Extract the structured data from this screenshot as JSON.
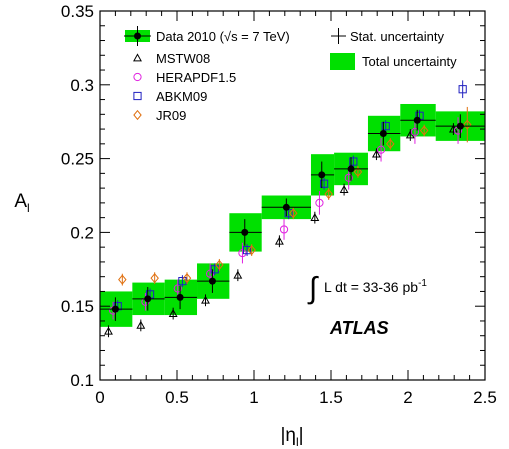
{
  "chart_data": {
    "type": "scatter",
    "xlabel": "|η",
    "xlabel_sub": "l",
    "xlabel_suffix": "|",
    "ylabel": "A",
    "ylabel_sub": "l",
    "xlim": [
      0,
      2.5
    ],
    "ylim": [
      0.1,
      0.35
    ],
    "xticks": [
      "0",
      "0.5",
      "1",
      "1.5",
      "2",
      "2.5"
    ],
    "yticks": [
      "0.1",
      "0.15",
      "0.2",
      "0.25",
      "0.3",
      "0.35"
    ],
    "bin_edges": [
      0,
      0.21,
      0.42,
      0.63,
      0.84,
      1.05,
      1.37,
      1.52,
      1.74,
      1.95,
      2.18,
      2.5
    ],
    "data": {
      "name": "Data 2010 (√s = 7 TeV)",
      "x": [
        0.1,
        0.31,
        0.52,
        0.73,
        0.94,
        1.21,
        1.44,
        1.63,
        1.84,
        2.06,
        2.34
      ],
      "y": [
        0.148,
        0.155,
        0.156,
        0.167,
        0.2,
        0.217,
        0.239,
        0.243,
        0.267,
        0.276,
        0.272
      ],
      "stat_err": [
        0.008,
        0.008,
        0.008,
        0.008,
        0.009,
        0.006,
        0.009,
        0.008,
        0.008,
        0.007,
        0.008
      ],
      "total_err": [
        0.012,
        0.011,
        0.012,
        0.012,
        0.013,
        0.008,
        0.014,
        0.011,
        0.012,
        0.011,
        0.01
      ],
      "color": "#00e000"
    },
    "theory": [
      {
        "name": "MSTW08",
        "marker": "triangle",
        "color": "#000000",
        "dx": -0.045,
        "y": [
          0.133,
          0.137,
          0.145,
          0.154,
          0.171,
          0.194,
          0.21,
          0.229,
          0.253,
          0.266,
          0.27
        ],
        "err": [
          0.004,
          0.004,
          0.004,
          0.004,
          0.004,
          0.004,
          0.004,
          0.004,
          0.004,
          0.004,
          0.004
        ]
      },
      {
        "name": "HERAPDF1.5",
        "marker": "circle",
        "color": "#e020e0",
        "dx": -0.015,
        "y": [
          0.147,
          0.153,
          0.162,
          0.172,
          0.186,
          0.202,
          0.22,
          0.237,
          0.256,
          0.268,
          0.269
        ],
        "err": [
          0.006,
          0.006,
          0.006,
          0.007,
          0.007,
          0.007,
          0.008,
          0.008,
          0.008,
          0.008,
          0.009
        ]
      },
      {
        "name": "ABKM09",
        "marker": "square",
        "color": "#2020c0",
        "dx": 0.015,
        "y": [
          0.15,
          0.158,
          0.167,
          0.175,
          0.188,
          0.213,
          0.233,
          0.248,
          0.272,
          0.279,
          0.297
        ],
        "err": [
          0.004,
          0.004,
          0.004,
          0.004,
          0.004,
          0.004,
          0.004,
          0.004,
          0.004,
          0.004,
          0.006
        ]
      },
      {
        "name": "JR09",
        "marker": "diamond",
        "color": "#e07010",
        "dx": 0.045,
        "y": [
          0.168,
          0.169,
          0.169,
          0.178,
          0.188,
          0.213,
          0.226,
          0.241,
          0.26,
          0.269,
          0.273
        ],
        "err": [
          0.004,
          0.004,
          0.004,
          0.004,
          0.004,
          0.004,
          0.004,
          0.004,
          0.004,
          0.004,
          0.012
        ]
      }
    ],
    "legend": {
      "data_label": "Data 2010 (√s = 7 TeV)",
      "stat_label": "Stat. uncertainty",
      "total_label": "Total uncertainty"
    },
    "annotations": {
      "lumi_prefix": "L dt = 33-36 pb",
      "lumi_sup": "-1",
      "experiment": "ATLAS"
    },
    "grid": false
  }
}
